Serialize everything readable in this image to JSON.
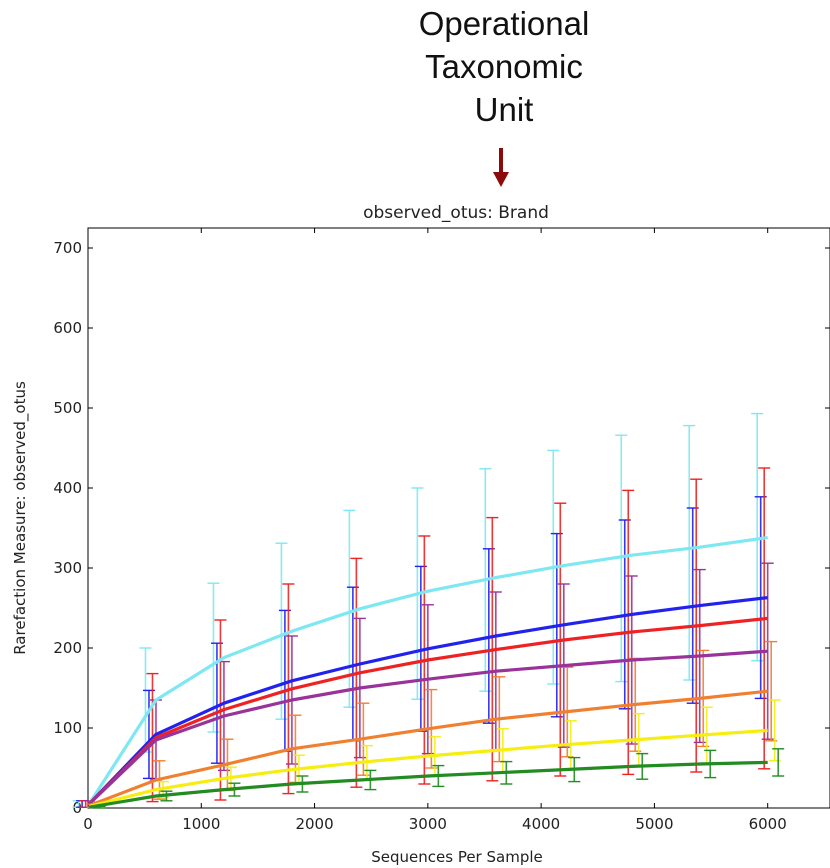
{
  "annotation": {
    "lines": [
      "Operational",
      "Taxonomic",
      "Unit"
    ],
    "arrow_color": "#8b0a0a"
  },
  "chart_data": {
    "type": "line",
    "title": "observed_otus: Brand",
    "xlabel": "Sequences Per Sample",
    "ylabel": "Rarefaction Measure: observed_otus",
    "xlim": [
      0,
      6550
    ],
    "ylim": [
      0,
      725
    ],
    "xticks": [
      0,
      1000,
      2000,
      3000,
      4000,
      5000,
      6000
    ],
    "yticks": [
      0,
      100,
      200,
      300,
      400,
      500,
      600,
      700
    ],
    "x": [
      10,
      600,
      1200,
      1800,
      2400,
      3000,
      3600,
      4200,
      4800,
      5400,
      6000
    ],
    "series": [
      {
        "color": "#7ee8f2",
        "values": [
          5,
          135,
          188,
          221,
          249,
          271,
          288,
          303,
          316,
          326,
          338
        ],
        "err_lo": [
          4,
          65,
          93,
          110,
          123,
          135,
          142,
          148,
          158,
          166,
          154
        ],
        "err_hi": [
          4,
          65,
          93,
          110,
          123,
          129,
          136,
          144,
          150,
          152,
          155
        ]
      },
      {
        "color": "#2222ee",
        "values": [
          5,
          92,
          131,
          159,
          180,
          199,
          215,
          229,
          242,
          253,
          263
        ],
        "err_lo": [
          4,
          55,
          75,
          88,
          96,
          103,
          109,
          115,
          118,
          122,
          126
        ],
        "err_hi": [
          4,
          55,
          75,
          88,
          96,
          103,
          109,
          114,
          118,
          122,
          126
        ]
      },
      {
        "color": "#ee2222",
        "values": [
          5,
          88,
          123,
          149,
          169,
          185,
          198,
          210,
          220,
          228,
          237
        ],
        "err_lo": [
          4,
          80,
          113,
          131,
          143,
          155,
          164,
          170,
          178,
          183,
          188
        ],
        "err_hi": [
          4,
          80,
          112,
          131,
          143,
          155,
          165,
          171,
          177,
          183,
          188
        ]
      },
      {
        "color": "#993399",
        "values": [
          5,
          85,
          115,
          135,
          150,
          161,
          171,
          178,
          185,
          190,
          196
        ],
        "err_lo": [
          4,
          50,
          68,
          80,
          87,
          93,
          99,
          102,
          105,
          108,
          110
        ],
        "err_hi": [
          4,
          50,
          68,
          80,
          87,
          93,
          99,
          102,
          105,
          108,
          110
        ]
      },
      {
        "color": "#f08030",
        "values": [
          3,
          35,
          54,
          74,
          86,
          99,
          111,
          120,
          129,
          137,
          146
        ],
        "err_lo": [
          2,
          24,
          32,
          42,
          45,
          49,
          53,
          56,
          58,
          60,
          62
        ],
        "err_hi": [
          2,
          24,
          32,
          42,
          45,
          49,
          53,
          56,
          58,
          60,
          62
        ]
      },
      {
        "color": "#f5ee10",
        "values": [
          2,
          23,
          37,
          48,
          57,
          65,
          72,
          79,
          85,
          91,
          97
        ],
        "err_lo": [
          1,
          10,
          14,
          18,
          21,
          24,
          27,
          30,
          33,
          35,
          38
        ],
        "err_hi": [
          1,
          10,
          14,
          18,
          21,
          24,
          27,
          30,
          33,
          35,
          38
        ]
      },
      {
        "color": "#228b22",
        "values": [
          1,
          15,
          23,
          30,
          35,
          40,
          44,
          48,
          52,
          55,
          57
        ],
        "err_lo": [
          1,
          6,
          8,
          10,
          12,
          13,
          14,
          15,
          16,
          17,
          17
        ],
        "err_hi": [
          1,
          6,
          8,
          10,
          12,
          13,
          14,
          15,
          16,
          17,
          17
        ]
      }
    ],
    "grid": false,
    "legend": "none"
  }
}
